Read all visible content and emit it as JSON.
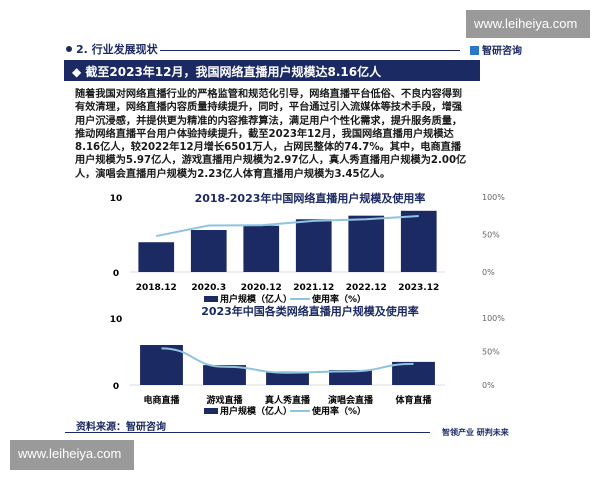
{
  "watermark": "www.leiheiya.com",
  "section": "2. 行业发展现状",
  "brand": "智研咨询",
  "banner": "截至2023年12月，我国网络直播用户规模达8.16亿人",
  "paragraph": "随着我国对网络直播行业的严格监管和规范化引导，网络直播平台低俗、不良内容得到有效清理，网络直播内容质量持续提升，同时，平台通过引入流媒体等技术手段，增强用户沉浸感，并提供更为精准的内容推荐算法，满足用户个性化需求，提升服务质量，推动网络直播平台用户体验持续提升，截至2023年12月，我国网络直播用户规模达8.16亿人，较2022年12月增长6501万人，占网民整体的74.7%。其中，电商直播用户规模为5.97亿人，游戏直播用户规模为2.97亿人，真人秀直播用户规模为2.00亿人，演唱会直播用户规模为2.23亿人体育直播用户规模为3.45亿人。",
  "source": "资料来源：智研咨询",
  "slogan": "智领产业 研判未来",
  "colors": {
    "bar": "#1c2a63",
    "line": "#8fc3e0"
  },
  "chart_data": [
    {
      "type": "bar",
      "title": "2018-2023年中国网络直播用户规模及使用率",
      "categories": [
        "2018.12",
        "2020.3",
        "2020.12",
        "2021.12",
        "2022.12",
        "2023.12"
      ],
      "series": [
        {
          "name": "用户规模（亿人）",
          "type": "bar",
          "axis": "left",
          "values": [
            3.97,
            5.6,
            6.17,
            7.03,
            7.51,
            8.16
          ]
        },
        {
          "name": "使用率（%）",
          "type": "line",
          "axis": "right",
          "values": [
            47.9,
            62.0,
            62.4,
            68.2,
            70.3,
            74.7
          ]
        }
      ],
      "ylim": [
        0,
        10
      ],
      "yticks": [
        "0",
        "10"
      ],
      "y2lim": [
        0,
        100
      ],
      "y2ticks": [
        "0%",
        "50%",
        "100%"
      ],
      "legend": "bottom"
    },
    {
      "type": "bar",
      "title": "2023年中国各类网络直播用户规模及使用率",
      "categories": [
        "电商直播",
        "游戏直播",
        "真人秀直播",
        "演唱会直播",
        "体育直播"
      ],
      "series": [
        {
          "name": "用户规模（亿人）",
          "type": "bar",
          "axis": "left",
          "values": [
            5.97,
            2.97,
            2.0,
            2.23,
            3.45
          ]
        },
        {
          "name": "使用率（%）",
          "type": "line",
          "axis": "right",
          "values": [
            54.7,
            27.2,
            18.3,
            20.4,
            31.6
          ]
        }
      ],
      "ylim": [
        0,
        10
      ],
      "yticks": [
        "0",
        "10"
      ],
      "y2lim": [
        0,
        100
      ],
      "y2ticks": [
        "0%",
        "50%",
        "100%"
      ],
      "legend": "bottom"
    }
  ]
}
